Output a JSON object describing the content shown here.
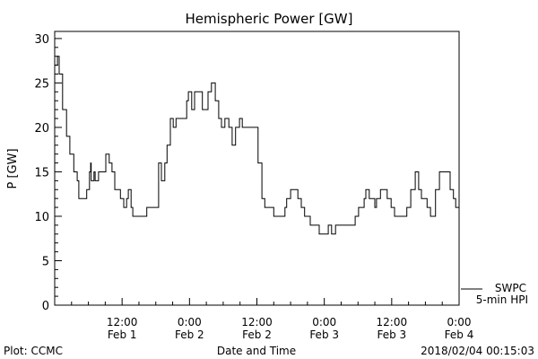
{
  "chart_data": {
    "type": "line",
    "title": "Hemispheric Power [GW]",
    "xlabel": "Date and Time",
    "ylabel": "P [GW]",
    "xlim_hours": [
      0,
      72
    ],
    "ylim": [
      0,
      30
    ],
    "y_ticks": [
      0,
      5,
      10,
      15,
      20,
      25,
      30
    ],
    "x_ticks": [
      {
        "hours": 12,
        "time": "12:00",
        "date": "Feb 1"
      },
      {
        "hours": 24,
        "time": "0:00",
        "date": "Feb 2"
      },
      {
        "hours": 36,
        "time": "12:00",
        "date": "Feb 2"
      },
      {
        "hours": 48,
        "time": "0:00",
        "date": "Feb 3"
      },
      {
        "hours": 60,
        "time": "12:00",
        "date": "Feb 3"
      },
      {
        "hours": 72,
        "time": "0:00",
        "date": "Feb 4"
      }
    ],
    "legend": {
      "position": "bottom-right",
      "entries": [
        "SWPC",
        "5-min HPI"
      ]
    },
    "series": [
      {
        "name": "SWPC 5-min HPI",
        "x_hours": [
          0,
          0.5,
          0.8,
          1.4,
          2.1,
          2.7,
          3.4,
          4.0,
          4.3,
          5.4,
          5.7,
          6.2,
          6.4,
          6.5,
          7.0,
          7.2,
          7.5,
          7.8,
          8.5,
          9.1,
          9.7,
          10.2,
          10.7,
          11.7,
          12.3,
          12.8,
          13.1,
          13.6,
          13.9,
          16.1,
          16.4,
          17.4,
          18.4,
          18.5,
          19.0,
          19.6,
          20.0,
          20.6,
          21.1,
          21.6,
          22.8,
          23.5,
          23.8,
          24.4,
          24.9,
          25.9,
          26.3,
          27.3,
          27.9,
          28.6,
          29.2,
          29.7,
          30.3,
          31.0,
          31.6,
          32.2,
          32.9,
          33.4,
          35.6,
          36.2,
          36.9,
          37.4,
          38.8,
          39.0,
          40.7,
          41.0,
          41.3,
          42.0,
          43.3,
          43.9,
          44.5,
          45.5,
          47.1,
          48.7,
          49.3,
          50.0,
          52.5,
          53.5,
          54.1,
          55.1,
          55.4,
          56.0,
          57.0,
          57.3,
          58.0,
          59.2,
          59.9,
          60.5,
          62.1,
          62.7,
          63.4,
          64.2,
          64.8,
          65.3,
          66.3,
          66.9,
          67.8,
          68.5,
          69.8,
          70.4,
          71.0,
          71.4,
          72
        ],
        "values": [
          27,
          28,
          26,
          22,
          19,
          17,
          15,
          14,
          12,
          12,
          13,
          15,
          16,
          14,
          15,
          14,
          14,
          15,
          15,
          17,
          16,
          15,
          13,
          12,
          11,
          12,
          13,
          11,
          10,
          10,
          11,
          11,
          11,
          16,
          14,
          16,
          18,
          21,
          20,
          21,
          21,
          23,
          24,
          22,
          24,
          24,
          22,
          24,
          25,
          23,
          21,
          20,
          21,
          20,
          18,
          20,
          21,
          20,
          20,
          16,
          12,
          11,
          11,
          10,
          10,
          11,
          12,
          13,
          12,
          11,
          10,
          9,
          8,
          9,
          8,
          9,
          9,
          10,
          11,
          12,
          13,
          12,
          11,
          12,
          13,
          12,
          11,
          10,
          10,
          11,
          13,
          15,
          13,
          12,
          11,
          10,
          13,
          15,
          15,
          13,
          12,
          11,
          10
        ]
      }
    ]
  },
  "footer": {
    "left": "Plot: CCMC",
    "right": "2018/02/04 00:15:03"
  }
}
